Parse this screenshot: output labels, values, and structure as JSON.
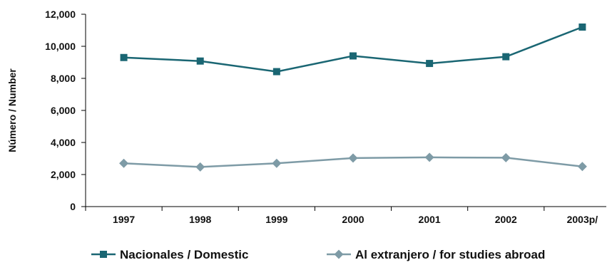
{
  "chart_data": {
    "type": "line",
    "ylabel": "Número / Number",
    "categories": [
      "1997",
      "1998",
      "1999",
      "2000",
      "2001",
      "2002",
      "2003p/"
    ],
    "ylim": [
      0,
      12000
    ],
    "yticks": [
      0,
      2000,
      4000,
      6000,
      8000,
      10000,
      12000
    ],
    "ytick_labels": [
      "0",
      "2,000",
      "4,000",
      "6,000",
      "8,000",
      "10,000",
      "12,000"
    ],
    "grid": false,
    "legend": "bottom",
    "series": [
      {
        "name": "Nacionales / Domestic",
        "marker": "square",
        "color": "#1a6673",
        "values": [
          9300,
          9080,
          8420,
          9400,
          8930,
          9350,
          11200
        ]
      },
      {
        "name": "Al extranjero / for studies abroad",
        "marker": "diamond",
        "color": "#7e9ba6",
        "values": [
          2700,
          2470,
          2700,
          3030,
          3070,
          3050,
          2500
        ]
      }
    ]
  }
}
